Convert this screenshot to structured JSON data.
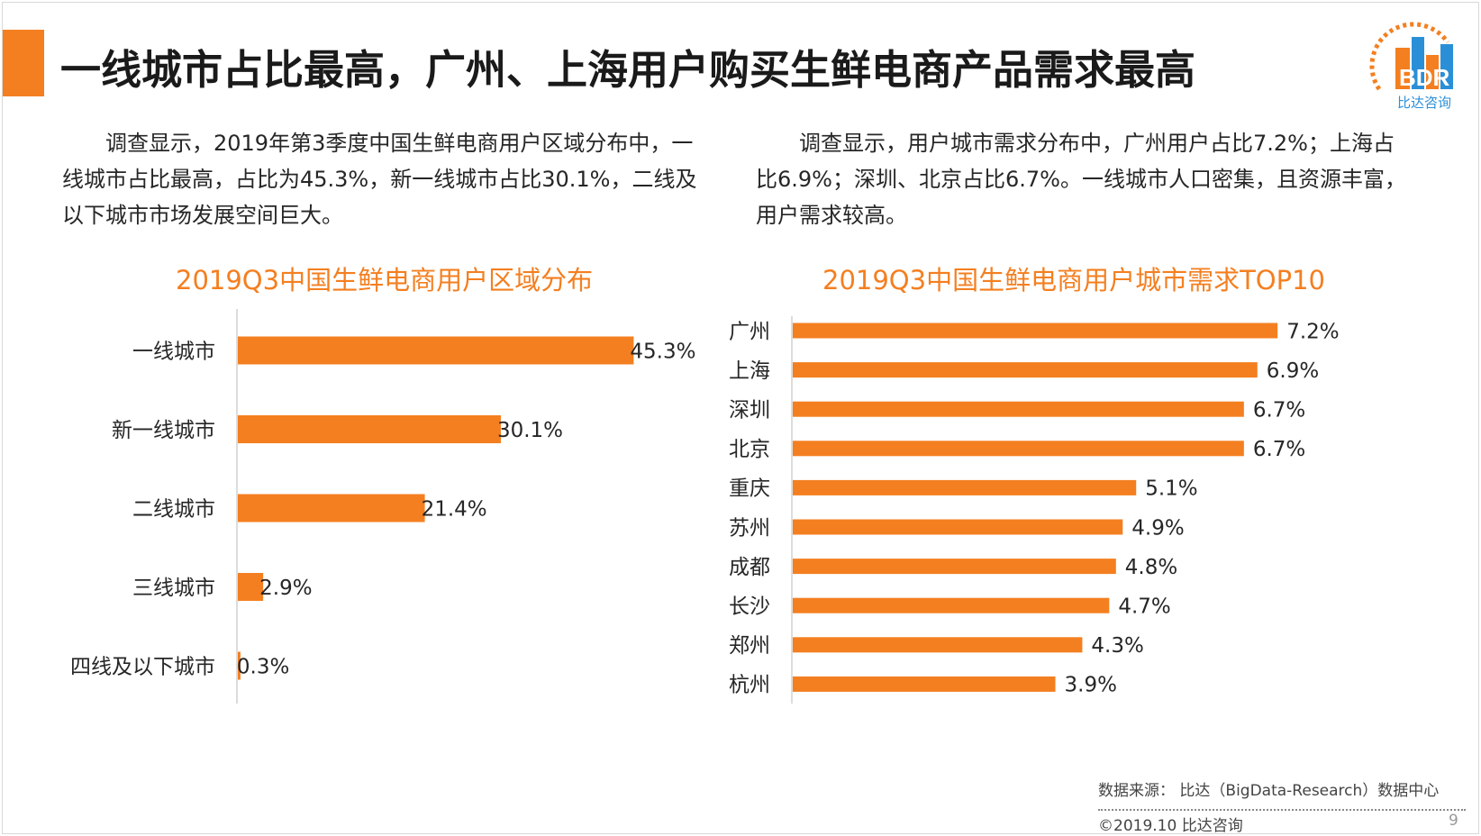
{
  "title": "一线城市占比最高，广州、上海用户购买生鲜电商产品需求最高",
  "logo": {
    "brand": "BDR",
    "name": "比达咨询"
  },
  "left_text": "　　调查显示，2019年第3季度中国生鲜电商用户区域分布中，一线城市占比最高，占比为45.3%，新一线城市占比30.1%，二线及以下城市市场发展空间巨大。",
  "right_text": "　　调查显示，用户城市需求分布中，广州用户占比7.2%；上海占比6.9%；深圳、北京占比6.7%。一线城市人口密集，且资源丰富，用户需求较高。",
  "colors": {
    "accent": "#f47f20",
    "bar": "#f47f20"
  },
  "chart_data": [
    {
      "type": "bar",
      "orientation": "horizontal",
      "title": "2019Q3中国生鲜电商用户区域分布",
      "categories": [
        "一线城市",
        "新一线城市",
        "二线城市",
        "三线城市",
        "四线及以下城市"
      ],
      "values": [
        45.3,
        30.1,
        21.4,
        2.9,
        0.3
      ],
      "labels": [
        "45.3%",
        "30.1%",
        "21.4%",
        "2.9%",
        "0.3%"
      ],
      "unit": "%",
      "xlim": [
        0,
        50
      ],
      "grid": false
    },
    {
      "type": "bar",
      "orientation": "horizontal",
      "title": "2019Q3中国生鲜电商用户城市需求TOP10",
      "categories": [
        "广州",
        "上海",
        "深圳",
        "北京",
        "重庆",
        "苏州",
        "成都",
        "长沙",
        "郑州",
        "杭州"
      ],
      "values": [
        7.2,
        6.9,
        6.7,
        6.7,
        5.1,
        4.9,
        4.8,
        4.7,
        4.3,
        3.9
      ],
      "labels": [
        "7.2%",
        "6.9%",
        "6.7%",
        "6.7%",
        "5.1%",
        "4.9%",
        "4.8%",
        "4.7%",
        "4.3%",
        "3.9%"
      ],
      "unit": "%",
      "xlim": [
        0,
        8
      ],
      "grid": false
    }
  ],
  "footer": {
    "source": "数据来源： 比达（BigData-Research）数据中心",
    "copyright": "©2019.10  比达咨询",
    "page": "9"
  }
}
